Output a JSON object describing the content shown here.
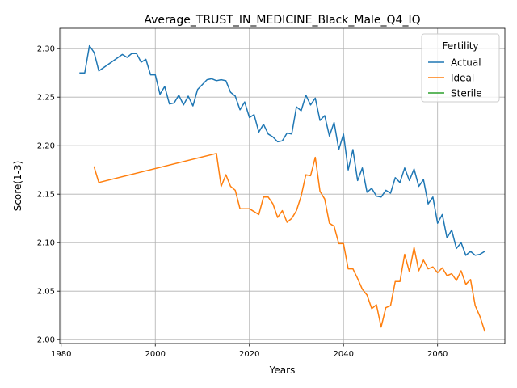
{
  "chart_data": {
    "type": "line",
    "title": "Average_TRUST_IN_MEDICINE_Black_Male_Q4_IQ",
    "xlabel": "Years",
    "ylabel": "Score(1-3)",
    "xlim": [
      1979.7,
      2074.3
    ],
    "ylim": [
      1.996,
      2.321
    ],
    "xticks": [
      1980,
      2000,
      2020,
      2040,
      2060
    ],
    "yticks": [
      2.0,
      2.05,
      2.1,
      2.15,
      2.2,
      2.25,
      2.3
    ],
    "xtick_labels": [
      "1980",
      "2000",
      "2020",
      "2040",
      "2060"
    ],
    "ytick_labels": [
      "2.00",
      "2.05",
      "2.10",
      "2.15",
      "2.20",
      "2.25",
      "2.30"
    ],
    "grid": true,
    "legend": {
      "title": "Fertility",
      "placement": "top-right"
    },
    "series": [
      {
        "name": "Actual",
        "color": "#1f77b4",
        "points": [
          [
            1984,
            2.275
          ],
          [
            1985,
            2.275
          ],
          [
            1986,
            2.303
          ],
          [
            1987,
            2.296
          ],
          [
            1988,
            2.277
          ],
          [
            1993,
            2.294
          ],
          [
            1994,
            2.291
          ],
          [
            1995,
            2.295
          ],
          [
            1996,
            2.295
          ],
          [
            1997,
            2.286
          ],
          [
            1998,
            2.289
          ],
          [
            1999,
            2.273
          ],
          [
            2000,
            2.273
          ],
          [
            2001,
            2.253
          ],
          [
            2002,
            2.261
          ],
          [
            2003,
            2.243
          ],
          [
            2004,
            2.244
          ],
          [
            2005,
            2.252
          ],
          [
            2006,
            2.242
          ],
          [
            2007,
            2.251
          ],
          [
            2008,
            2.241
          ],
          [
            2009,
            2.258
          ],
          [
            2010,
            2.263
          ],
          [
            2011,
            2.268
          ],
          [
            2012,
            2.269
          ],
          [
            2013,
            2.267
          ],
          [
            2014,
            2.268
          ],
          [
            2015,
            2.267
          ],
          [
            2016,
            2.255
          ],
          [
            2017,
            2.251
          ],
          [
            2018,
            2.237
          ],
          [
            2019,
            2.245
          ],
          [
            2020,
            2.229
          ],
          [
            2021,
            2.232
          ],
          [
            2022,
            2.214
          ],
          [
            2023,
            2.222
          ],
          [
            2024,
            2.212
          ],
          [
            2025,
            2.209
          ],
          [
            2026,
            2.204
          ],
          [
            2027,
            2.205
          ],
          [
            2028,
            2.213
          ],
          [
            2029,
            2.212
          ],
          [
            2030,
            2.24
          ],
          [
            2031,
            2.236
          ],
          [
            2032,
            2.252
          ],
          [
            2033,
            2.242
          ],
          [
            2034,
            2.249
          ],
          [
            2035,
            2.226
          ],
          [
            2036,
            2.231
          ],
          [
            2037,
            2.21
          ],
          [
            2038,
            2.224
          ],
          [
            2039,
            2.196
          ],
          [
            2040,
            2.212
          ],
          [
            2041,
            2.175
          ],
          [
            2042,
            2.196
          ],
          [
            2043,
            2.164
          ],
          [
            2044,
            2.177
          ],
          [
            2045,
            2.152
          ],
          [
            2046,
            2.156
          ],
          [
            2047,
            2.148
          ],
          [
            2048,
            2.147
          ],
          [
            2049,
            2.154
          ],
          [
            2050,
            2.151
          ],
          [
            2051,
            2.167
          ],
          [
            2052,
            2.162
          ],
          [
            2053,
            2.177
          ],
          [
            2054,
            2.164
          ],
          [
            2055,
            2.176
          ],
          [
            2056,
            2.158
          ],
          [
            2057,
            2.165
          ],
          [
            2058,
            2.14
          ],
          [
            2059,
            2.147
          ],
          [
            2060,
            2.12
          ],
          [
            2061,
            2.129
          ],
          [
            2062,
            2.105
          ],
          [
            2063,
            2.113
          ],
          [
            2064,
            2.094
          ],
          [
            2065,
            2.1
          ],
          [
            2066,
            2.087
          ],
          [
            2067,
            2.091
          ],
          [
            2068,
            2.087
          ],
          [
            2069,
            2.088
          ],
          [
            2070,
            2.091
          ]
        ]
      },
      {
        "name": "Ideal",
        "color": "#ff7f0e",
        "points": [
          [
            1987,
            2.178
          ],
          [
            1988,
            2.162
          ],
          [
            2013,
            2.192
          ],
          [
            2014,
            2.158
          ],
          [
            2015,
            2.17
          ],
          [
            2016,
            2.158
          ],
          [
            2017,
            2.154
          ],
          [
            2018,
            2.135
          ],
          [
            2019,
            2.135
          ],
          [
            2020,
            2.135
          ],
          [
            2021,
            2.132
          ],
          [
            2022,
            2.129
          ],
          [
            2023,
            2.147
          ],
          [
            2024,
            2.147
          ],
          [
            2025,
            2.14
          ],
          [
            2026,
            2.126
          ],
          [
            2027,
            2.133
          ],
          [
            2028,
            2.121
          ],
          [
            2029,
            2.125
          ],
          [
            2030,
            2.133
          ],
          [
            2031,
            2.148
          ],
          [
            2032,
            2.17
          ],
          [
            2033,
            2.169
          ],
          [
            2034,
            2.188
          ],
          [
            2035,
            2.153
          ],
          [
            2036,
            2.145
          ],
          [
            2037,
            2.12
          ],
          [
            2038,
            2.117
          ],
          [
            2039,
            2.099
          ],
          [
            2040,
            2.099
          ],
          [
            2041,
            2.073
          ],
          [
            2042,
            2.073
          ],
          [
            2043,
            2.063
          ],
          [
            2044,
            2.052
          ],
          [
            2045,
            2.046
          ],
          [
            2046,
            2.032
          ],
          [
            2047,
            2.036
          ],
          [
            2048,
            2.013
          ],
          [
            2049,
            2.033
          ],
          [
            2050,
            2.035
          ],
          [
            2051,
            2.06
          ],
          [
            2052,
            2.06
          ],
          [
            2053,
            2.088
          ],
          [
            2054,
            2.07
          ],
          [
            2055,
            2.095
          ],
          [
            2056,
            2.071
          ],
          [
            2057,
            2.082
          ],
          [
            2058,
            2.073
          ],
          [
            2059,
            2.075
          ],
          [
            2060,
            2.069
          ],
          [
            2061,
            2.074
          ],
          [
            2062,
            2.066
          ],
          [
            2063,
            2.068
          ],
          [
            2064,
            2.061
          ],
          [
            2065,
            2.071
          ],
          [
            2066,
            2.057
          ],
          [
            2067,
            2.062
          ],
          [
            2068,
            2.035
          ],
          [
            2069,
            2.024
          ],
          [
            2070,
            2.009
          ]
        ]
      },
      {
        "name": "Sterile",
        "color": "#2ca02c",
        "points": []
      }
    ]
  }
}
